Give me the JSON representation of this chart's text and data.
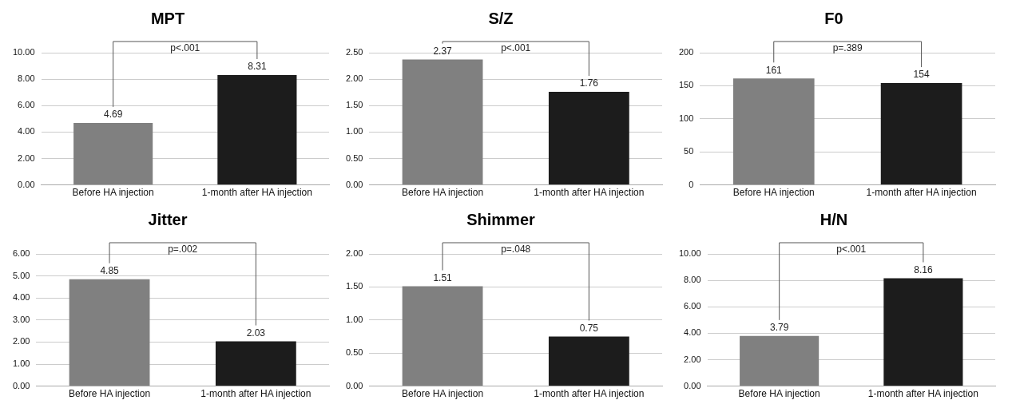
{
  "chart_data": [
    {
      "type": "bar",
      "title": "MPT",
      "categories": [
        "Before HA injection",
        "1-month after HA injection"
      ],
      "values": [
        4.69,
        8.31
      ],
      "colors": [
        "#808080",
        "#1c1c1c"
      ],
      "ylim": [
        0,
        10
      ],
      "yticks": [
        {
          "value": 0,
          "label": "0.00"
        },
        {
          "value": 2,
          "label": "2.00"
        },
        {
          "value": 4,
          "label": "4.00"
        },
        {
          "value": 6,
          "label": "6.00"
        },
        {
          "value": 8,
          "label": "8.00"
        },
        {
          "value": 10,
          "label": "10.00"
        }
      ],
      "grid": "y",
      "data_labels": true,
      "annotations": [
        "p<.001"
      ]
    },
    {
      "type": "bar",
      "title": "S/Z",
      "categories": [
        "Before HA injection",
        "1-month after HA injection"
      ],
      "values": [
        2.37,
        1.76
      ],
      "colors": [
        "#808080",
        "#1c1c1c"
      ],
      "ylim": [
        0,
        2.5
      ],
      "yticks": [
        {
          "value": 0,
          "label": "0.00"
        },
        {
          "value": 0.5,
          "label": "0.50"
        },
        {
          "value": 1,
          "label": "1.00"
        },
        {
          "value": 1.5,
          "label": "1.50"
        },
        {
          "value": 2,
          "label": "2.00"
        },
        {
          "value": 2.5,
          "label": "2.50"
        }
      ],
      "grid": "y",
      "data_labels": true,
      "annotations": [
        "p<.001"
      ]
    },
    {
      "type": "bar",
      "title": "F0",
      "categories": [
        "Before HA injection",
        "1-month after HA injection"
      ],
      "values": [
        161,
        154
      ],
      "colors": [
        "#808080",
        "#1c1c1c"
      ],
      "ylim": [
        0,
        200
      ],
      "yticks": [
        0,
        50,
        100,
        150,
        200
      ],
      "grid": "y",
      "data_labels": true,
      "annotations": [
        "p=.389"
      ]
    },
    {
      "type": "bar",
      "title": "Jitter",
      "categories": [
        "Before HA injection",
        "1-month after HA injection"
      ],
      "values": [
        4.85,
        2.03
      ],
      "colors": [
        "#808080",
        "#1c1c1c"
      ],
      "ylim": [
        0,
        6
      ],
      "yticks": [
        {
          "value": 0,
          "label": "0.00"
        },
        {
          "value": 1,
          "label": "1.00"
        },
        {
          "value": 2,
          "label": "2.00"
        },
        {
          "value": 3,
          "label": "3.00"
        },
        {
          "value": 4,
          "label": "4.00"
        },
        {
          "value": 5,
          "label": "5.00"
        },
        {
          "value": 6,
          "label": "6.00"
        }
      ],
      "grid": "y",
      "data_labels": true,
      "annotations": [
        "p=.002"
      ]
    },
    {
      "type": "bar",
      "title": "Shimmer",
      "categories": [
        "Before HA injection",
        "1-month after HA injection"
      ],
      "values": [
        1.51,
        0.75
      ],
      "colors": [
        "#808080",
        "#1c1c1c"
      ],
      "ylim": [
        0,
        2
      ],
      "yticks": [
        {
          "value": 0,
          "label": "0.00"
        },
        {
          "value": 0.5,
          "label": "0.50"
        },
        {
          "value": 1,
          "label": "1.00"
        },
        {
          "value": 1.5,
          "label": "1.50"
        },
        {
          "value": 2,
          "label": "2.00"
        }
      ],
      "grid": "y",
      "data_labels": true,
      "annotations": [
        "p=.048"
      ]
    },
    {
      "type": "bar",
      "title": "H/N",
      "categories": [
        "Before HA injection",
        "1-month after HA injection"
      ],
      "values": [
        3.79,
        8.16
      ],
      "colors": [
        "#808080",
        "#1c1c1c"
      ],
      "ylim": [
        0,
        10
      ],
      "yticks": [
        {
          "value": 0,
          "label": "0.00"
        },
        {
          "value": 2,
          "label": "2.00"
        },
        {
          "value": 4,
          "label": "4.00"
        },
        {
          "value": 6,
          "label": "6.00"
        },
        {
          "value": 8,
          "label": "8.00"
        },
        {
          "value": 10,
          "label": "10.00"
        }
      ],
      "grid": "y",
      "data_labels": true,
      "annotations": [
        "p<.001"
      ]
    }
  ]
}
